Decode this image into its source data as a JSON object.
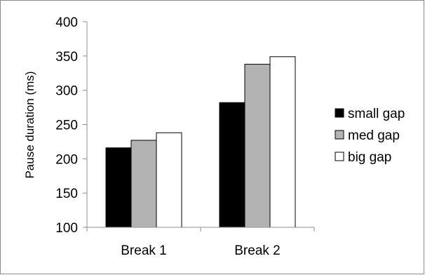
{
  "chart_data": {
    "type": "bar",
    "title": "",
    "xlabel": "",
    "ylabel": "Pause duration  (ms)",
    "ylim": [
      100,
      400
    ],
    "yticks": [
      100,
      150,
      200,
      250,
      300,
      350,
      400
    ],
    "categories": [
      "Break 1",
      "Break 2"
    ],
    "series": [
      {
        "name": "small gap",
        "values": [
          216,
          282
        ],
        "color": "#000000"
      },
      {
        "name": "med gap",
        "values": [
          227,
          338
        ],
        "color": "#b3b3b3"
      },
      {
        "name": "big gap",
        "values": [
          238,
          349
        ],
        "color": "#ffffff"
      }
    ],
    "grid": false,
    "legend_position": "right"
  }
}
